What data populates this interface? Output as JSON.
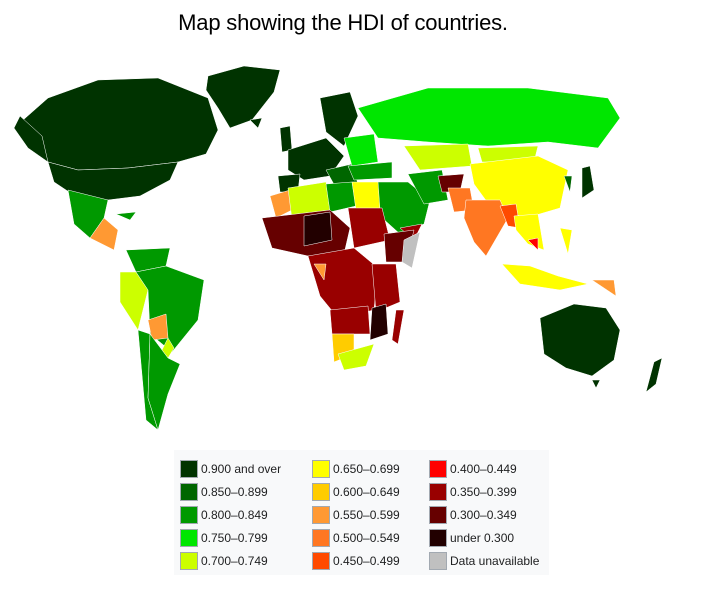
{
  "title": "Map showing the HDI of countries.",
  "colors": {
    "c900": "#003300",
    "c850": "#006600",
    "c800": "#009900",
    "c750": "#00e600",
    "c700": "#ccff00",
    "c650": "#ffff00",
    "c600": "#ffcc00",
    "c550": "#ff9933",
    "c500": "#ff7722",
    "c450": "#ff4a00",
    "c400": "#ff0000",
    "c350": "#990000",
    "c300": "#660000",
    "c000": "#220000",
    "cna": "#c0c0c0",
    "ocean": "#ffffff"
  },
  "legend": [
    {
      "label": "0.900 and over",
      "color": "#003300"
    },
    {
      "label": "0.850–0.899",
      "color": "#006600"
    },
    {
      "label": "0.800–0.849",
      "color": "#009900"
    },
    {
      "label": "0.750–0.799",
      "color": "#00e600"
    },
    {
      "label": "0.700–0.749",
      "color": "#ccff00"
    },
    {
      "label": "0.650–0.699",
      "color": "#ffff00"
    },
    {
      "label": "0.600–0.649",
      "color": "#ffcc00"
    },
    {
      "label": "0.550–0.599",
      "color": "#ff9933"
    },
    {
      "label": "0.500–0.549",
      "color": "#ff7722"
    },
    {
      "label": "0.450–0.499",
      "color": "#ff4a00"
    },
    {
      "label": "0.400–0.449",
      "color": "#ff0000"
    },
    {
      "label": "0.350–0.399",
      "color": "#990000"
    },
    {
      "label": "0.300–0.349",
      "color": "#660000"
    },
    {
      "label": "under 0.300",
      "color": "#220000"
    },
    {
      "label": "Data unavailable",
      "color": "#c0c0c0"
    }
  ]
}
